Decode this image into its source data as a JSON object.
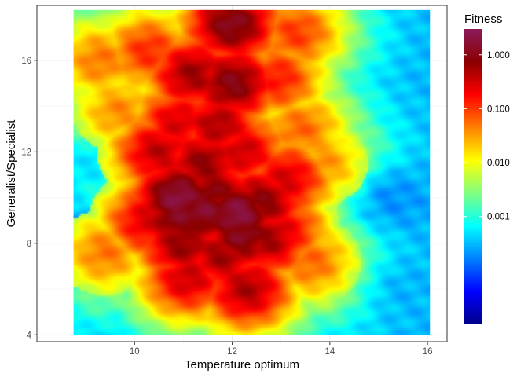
{
  "chart_data": {
    "type": "heatmap",
    "title": "",
    "xlabel": "Temperature optimum",
    "ylabel": "Generalist/Specialist",
    "xlim": [
      8.0,
      16.4
    ],
    "ylim": [
      3.7,
      18.4
    ],
    "data_extent": {
      "x": [
        8.75,
        16.05
      ],
      "y": [
        4.0,
        18.2
      ]
    },
    "x_ticks": [
      {
        "value": 10,
        "label": "10"
      },
      {
        "value": 12,
        "label": "12"
      },
      {
        "value": 14,
        "label": "14"
      },
      {
        "value": 16,
        "label": "16"
      }
    ],
    "y_ticks": [
      {
        "value": 4,
        "label": "4"
      },
      {
        "value": 8,
        "label": "8"
      },
      {
        "value": 12,
        "label": "12"
      },
      {
        "value": 16,
        "label": "16"
      }
    ],
    "grid": true,
    "legend": {
      "title": "Fitness",
      "placement": "right",
      "scale": "log10",
      "range": [
        1e-05,
        3.0
      ],
      "labels": [
        {
          "value": 1.0,
          "label": "1.000"
        },
        {
          "value": 0.1,
          "label": "0.100"
        },
        {
          "value": 0.01,
          "label": "0.010"
        },
        {
          "value": 0.001,
          "label": "0.001"
        }
      ],
      "colors": [
        "#00008b",
        "#0000ff",
        "#0080ff",
        "#00ffff",
        "#80ff80",
        "#ffff00",
        "#ff8000",
        "#ff0000",
        "#8b0000",
        "#8b1a5a"
      ]
    },
    "fitness_field": {
      "background_fitness": 0.0003,
      "hotspots": [
        {
          "x": 12.0,
          "y": 17.6,
          "fitness": 1.2
        },
        {
          "x": 11.2,
          "y": 15.4,
          "fitness": 0.6
        },
        {
          "x": 12.0,
          "y": 15.0,
          "fitness": 1.0
        },
        {
          "x": 12.3,
          "y": 6.0,
          "fitness": 0.5
        },
        {
          "x": 11.7,
          "y": 13.2,
          "fitness": 0.5
        },
        {
          "x": 10.9,
          "y": 10.0,
          "fitness": 2.0
        },
        {
          "x": 12.1,
          "y": 9.3,
          "fitness": 2.0
        },
        {
          "x": 11.4,
          "y": 9.4,
          "fitness": 1.5
        },
        {
          "x": 12.2,
          "y": 8.4,
          "fitness": 1.2
        },
        {
          "x": 10.9,
          "y": 9.2,
          "fitness": 1.2
        },
        {
          "x": 11.6,
          "y": 10.2,
          "fitness": 0.9
        },
        {
          "x": 12.6,
          "y": 9.8,
          "fitness": 0.8
        },
        {
          "x": 11.0,
          "y": 8.0,
          "fitness": 0.7
        },
        {
          "x": 11.8,
          "y": 7.5,
          "fitness": 0.6
        },
        {
          "x": 12.7,
          "y": 8.2,
          "fitness": 0.6
        },
        {
          "x": 11.4,
          "y": 11.5,
          "fitness": 0.7
        },
        {
          "x": 10.5,
          "y": 12.0,
          "fitness": 0.4
        },
        {
          "x": 12.2,
          "y": 12.0,
          "fitness": 0.35
        },
        {
          "x": 13.1,
          "y": 10.8,
          "fitness": 0.3
        },
        {
          "x": 11.1,
          "y": 6.5,
          "fitness": 0.35
        },
        {
          "x": 13.0,
          "y": 8.6,
          "fitness": 0.25
        },
        {
          "x": 10.3,
          "y": 9.0,
          "fitness": 0.3
        },
        {
          "x": 10.9,
          "y": 13.3,
          "fitness": 0.3
        },
        {
          "x": 12.9,
          "y": 15.2,
          "fitness": 0.15
        },
        {
          "x": 10.3,
          "y": 16.4,
          "fitness": 0.12
        },
        {
          "x": 13.3,
          "y": 17.2,
          "fitness": 0.1
        },
        {
          "x": 9.3,
          "y": 16.0,
          "fitness": 0.05
        },
        {
          "x": 13.4,
          "y": 13.0,
          "fitness": 0.06
        },
        {
          "x": 9.7,
          "y": 13.8,
          "fitness": 0.04
        },
        {
          "x": 9.4,
          "y": 7.6,
          "fitness": 0.05
        },
        {
          "x": 13.6,
          "y": 7.2,
          "fitness": 0.06
        },
        {
          "x": 13.8,
          "y": 11.5,
          "fitness": 0.04
        }
      ],
      "cold_spots": [
        {
          "x": 8.95,
          "y": 8.0,
          "fitness": 2e-05
        },
        {
          "x": 15.3,
          "y": 10.0,
          "fitness": 0.0002
        },
        {
          "x": 15.6,
          "y": 6.0,
          "fitness": 0.0003
        },
        {
          "x": 9.2,
          "y": 11.5,
          "fitness": 0.0005
        }
      ]
    }
  }
}
